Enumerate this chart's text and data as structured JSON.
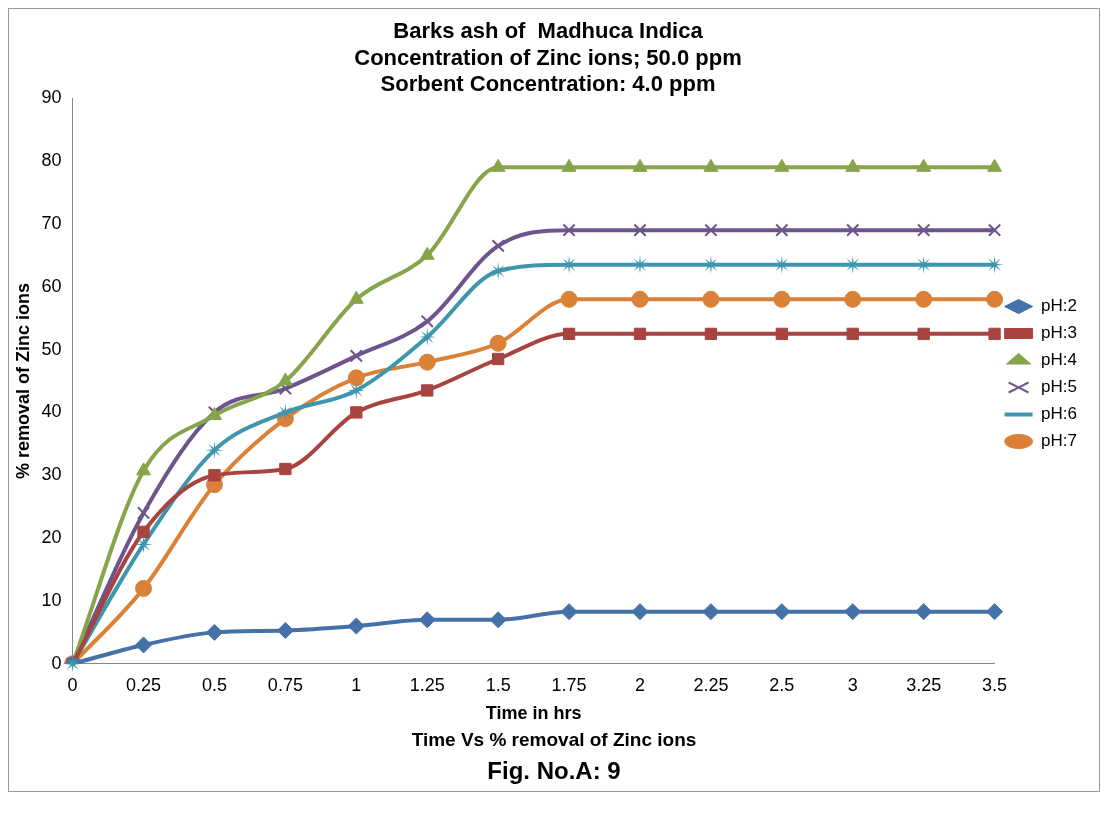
{
  "chart_data": {
    "type": "line",
    "title": "Barks ash of  Madhuca Indica\nConcentration of Zinc ions; 50.0 ppm\nSorbent Concentration: 4.0 ppm",
    "xlabel": "Time in hrs",
    "ylabel": "% removal of Zinc ions",
    "annotations": [
      "Time Vs % removal of Zinc ions",
      "Fig. No.A: 9"
    ],
    "categories": [
      "0",
      "0.25",
      "0.5",
      "0.75",
      "1",
      "1.25",
      "1.5",
      "1.75",
      "2",
      "2.25",
      "2.5",
      "3",
      "3.25",
      "3.5"
    ],
    "ylim": [
      0,
      90
    ],
    "yticks": [
      0,
      10,
      20,
      30,
      40,
      50,
      60,
      70,
      80,
      90
    ],
    "grid": false,
    "legend": "right",
    "series": [
      {
        "name": "pH:2",
        "color": "#4472a8",
        "marker": "diamond",
        "values": [
          0,
          3,
          5,
          5.3,
          6,
          7,
          7,
          8.3,
          8.3,
          8.3,
          8.3,
          8.3,
          8.3,
          8.3
        ]
      },
      {
        "name": "pH:3",
        "color": "#a84440",
        "marker": "square",
        "values": [
          0,
          21,
          30,
          31,
          40,
          43.5,
          48.5,
          52.5,
          52.5,
          52.5,
          52.5,
          52.5,
          52.5,
          52.5
        ]
      },
      {
        "name": "pH:4",
        "color": "#86a44a",
        "marker": "triangle",
        "values": [
          0,
          30.7,
          39.5,
          45,
          58,
          65,
          79,
          79,
          79,
          79,
          79,
          79,
          79,
          79
        ]
      },
      {
        "name": "pH:5",
        "color": "#6e548d",
        "marker": "cross",
        "values": [
          0,
          24,
          40,
          43.8,
          49,
          54.5,
          66.5,
          69,
          69,
          69,
          69,
          69,
          69,
          69
        ]
      },
      {
        "name": "pH:6",
        "color": "#3d96ae",
        "marker": "star",
        "values": [
          0,
          19,
          34,
          40,
          43.5,
          52,
          62.5,
          63.5,
          63.5,
          63.5,
          63.5,
          63.5,
          63.5,
          63.5
        ]
      },
      {
        "name": "pH:7",
        "color": "#da8137",
        "marker": "circle",
        "values": [
          0,
          12,
          28.5,
          39,
          45.5,
          48,
          51,
          58,
          58,
          58,
          58,
          58,
          58,
          58
        ]
      }
    ]
  }
}
